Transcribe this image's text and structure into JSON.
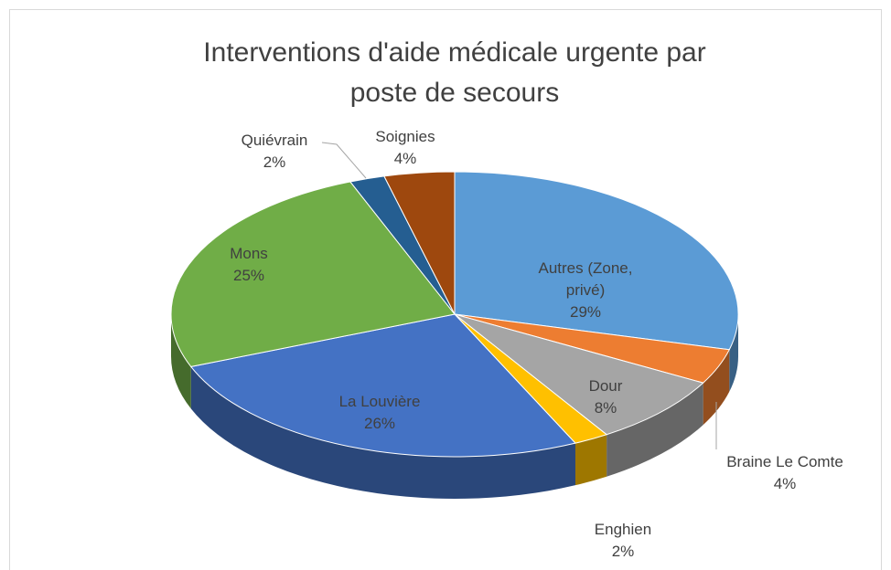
{
  "chart_data": {
    "type": "pie3d",
    "title": "Interventions d'aide médicale urgente par poste de secours",
    "categories": [
      "Autres (Zone, privé)",
      "Braine Le Comte",
      "Dour",
      "Enghien",
      "La Louvière",
      "Mons",
      "Quiévrain",
      "Soignies"
    ],
    "values": [
      29,
      4,
      8,
      2,
      26,
      25,
      2,
      4
    ],
    "value_labels": [
      "29%",
      "4%",
      "8%",
      "2%",
      "26%",
      "25%",
      "2%",
      "4%"
    ],
    "colors": [
      "#5b9bd5",
      "#ed7d31",
      "#a5a5a5",
      "#ffc000",
      "#4472c4",
      "#70ad47",
      "#255e91",
      "#9e480e"
    ]
  }
}
